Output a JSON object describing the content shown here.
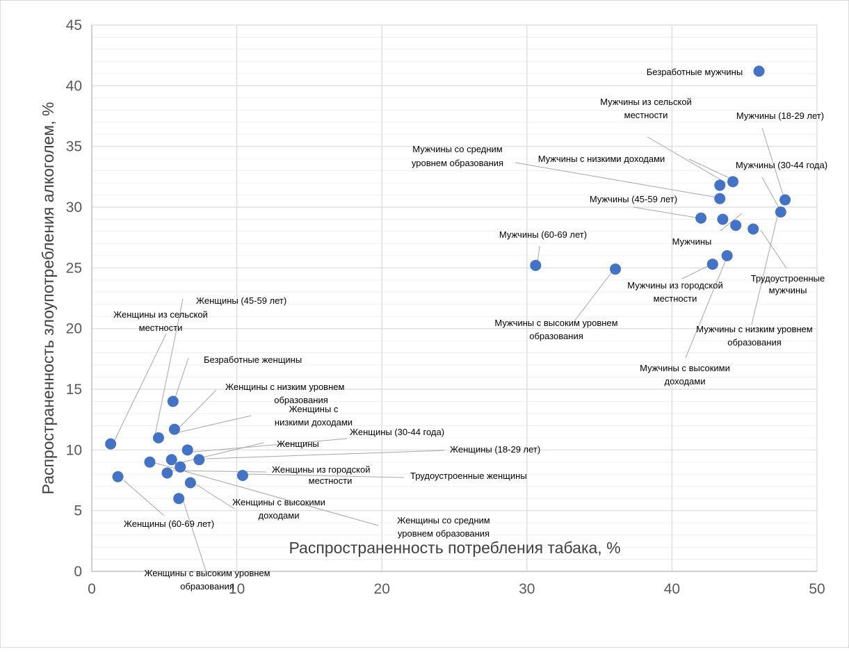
{
  "chart_data": {
    "type": "scatter",
    "xlabel": "Распространенность потребления табака, %",
    "ylabel": "Распространенность злоупотребления алкоголем, %",
    "xlim": [
      0,
      50
    ],
    "ylim": [
      0,
      45
    ],
    "x_ticks": [
      0,
      10,
      20,
      30,
      40,
      50
    ],
    "y_ticks": [
      0,
      5,
      10,
      15,
      20,
      25,
      30,
      35,
      40,
      45
    ],
    "grid": "major and minor horizontal",
    "marker_color": "#4472c4",
    "points": [
      {
        "label": "Безработные мужчины",
        "x": 46.0,
        "y": 41.2
      },
      {
        "label": "Мужчины из сельской местности",
        "x": 43.3,
        "y": 31.8
      },
      {
        "label": "Мужчины (18-29 лет)",
        "x": 47.8,
        "y": 30.6
      },
      {
        "label": "Мужчины со средним уровнем образования",
        "x": 43.3,
        "y": 30.7
      },
      {
        "label": "Мужчины с низкими доходами",
        "x": 44.2,
        "y": 32.1
      },
      {
        "label": "Мужчины (30-44 года)",
        "x": 47.5,
        "y": 29.6
      },
      {
        "label": "Мужчины (45-59 лет)",
        "x": 42.0,
        "y": 29.1
      },
      {
        "label": "Мужчины",
        "x": 43.5,
        "y": 29.0
      },
      {
        "label": "Мужчины (60-69 лет)",
        "x": 30.6,
        "y": 25.2
      },
      {
        "label": "Трудоустроенные мужчины",
        "x": 45.6,
        "y": 28.2
      },
      {
        "label": "Мужчины из городской местности",
        "x": 42.8,
        "y": 25.3
      },
      {
        "label": "Мужчины с высоким уровнем образования",
        "x": 36.1,
        "y": 24.9
      },
      {
        "label": "Мужчины с низким уровнем образования",
        "x": 44.4,
        "y": 28.5
      },
      {
        "label": "Мужчины с высокими доходами",
        "x": 43.8,
        "y": 26.0
      },
      {
        "label": "Женщины (45-59 лет)",
        "x": 4.6,
        "y": 11.0
      },
      {
        "label": "Женщины из сельской местности",
        "x": 1.3,
        "y": 10.5
      },
      {
        "label": "Безработные женщины",
        "x": 5.6,
        "y": 14.0
      },
      {
        "label": "Женщины с низким уровнем образования",
        "x": 5.7,
        "y": 11.7
      },
      {
        "label": "Женщины с низкими доходами",
        "x": 6.6,
        "y": 10.0
      },
      {
        "label": "Женщины (30-44 года)",
        "x": 6.1,
        "y": 8.6
      },
      {
        "label": "Женщины",
        "x": 5.5,
        "y": 9.2
      },
      {
        "label": "Женщины (18-29 лет)",
        "x": 7.4,
        "y": 9.2
      },
      {
        "label": "Женщины из городской местности",
        "x": 5.2,
        "y": 8.1
      },
      {
        "label": "Трудоустроенные женщины",
        "x": 10.4,
        "y": 7.9
      },
      {
        "label": "Женщины (60-69 лет)",
        "x": 1.8,
        "y": 7.8
      },
      {
        "label": "Женщины с высокими доходами",
        "x": 6.8,
        "y": 7.3
      },
      {
        "label": "Женщины со средним уровнем образования",
        "x": 4.0,
        "y": 9.0
      },
      {
        "label": "Женщины с высоким уровнем образования",
        "x": 6.0,
        "y": 6.0
      }
    ]
  }
}
